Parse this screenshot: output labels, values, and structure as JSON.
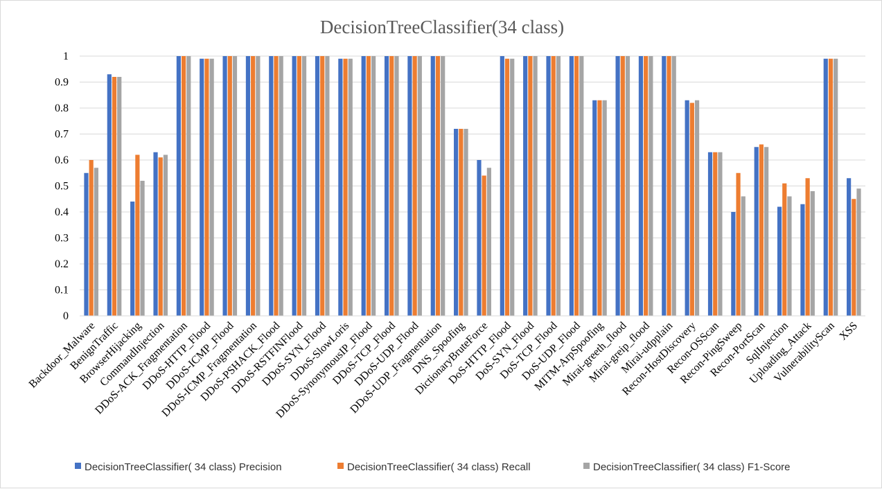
{
  "chart_data": {
    "type": "bar",
    "title": "DecisionTreeClassifier(34 class)",
    "xlabel": "",
    "ylabel": "",
    "ylim": [
      0,
      1
    ],
    "yticks": [
      "0",
      "0.1",
      "0.2",
      "0.3",
      "0.4",
      "0.5",
      "0.6",
      "0.7",
      "0.8",
      "0.9",
      "1"
    ],
    "grid": true,
    "legend_position": "bottom",
    "categories": [
      "Backdoor_Malware",
      "BenignTraffic",
      "BrowserHijacking",
      "CommandInjection",
      "DDoS-ACK_Fragmentation",
      "DDoS-HTTP_Flood",
      "DDoS-ICMP_Flood",
      "DDoS-ICMP_Fragmentation",
      "DDoS-PSHACK_Flood",
      "DDoS-RSTFINFlood",
      "DDoS-SYN_Flood",
      "DDoS-SlowLoris",
      "DDoS-SynonymousIP_Flood",
      "DDoS-TCP_Flood",
      "DDoS-UDP_Flood",
      "DDoS-UDP_Fragmentation",
      "DNS_Spoofing",
      "DictionaryBruteForce",
      "DoS-HTTP_Flood",
      "DoS-SYN_Flood",
      "DoS-TCP_Flood",
      "DoS-UDP_Flood",
      "MITM-ArpSpoofing",
      "Mirai-greeth_flood",
      "Mirai-greip_flood",
      "Mirai-udpplain",
      "Recon-HostDiscovery",
      "Recon-OSScan",
      "Recon-PingSweep",
      "Recon-PortScan",
      "SqlInjection",
      "Uploading_Attack",
      "VulnerabilityScan",
      "XSS"
    ],
    "series": [
      {
        "name": "DecisionTreeClassifier( 34 class) Precision",
        "color": "#4472c4",
        "values": [
          0.55,
          0.93,
          0.44,
          0.63,
          1,
          0.99,
          1,
          1,
          1,
          1,
          1,
          0.99,
          1,
          1,
          1,
          1,
          0.72,
          0.6,
          1,
          1,
          1,
          1,
          0.83,
          1,
          1,
          1,
          0.83,
          0.63,
          0.4,
          0.65,
          0.42,
          0.43,
          0.99,
          0.53
        ]
      },
      {
        "name": "DecisionTreeClassifier( 34 class) Recall",
        "color": "#ed7d31",
        "values": [
          0.6,
          0.92,
          0.62,
          0.61,
          1,
          0.99,
          1,
          1,
          1,
          1,
          1,
          0.99,
          1,
          1,
          1,
          1,
          0.72,
          0.54,
          0.99,
          1,
          1,
          1,
          0.83,
          1,
          1,
          1,
          0.82,
          0.63,
          0.55,
          0.66,
          0.51,
          0.53,
          0.99,
          0.45
        ]
      },
      {
        "name": "DecisionTreeClassifier( 34 class) F1-Score",
        "color": "#a5a5a5",
        "values": [
          0.57,
          0.92,
          0.52,
          0.62,
          1,
          0.99,
          1,
          1,
          1,
          1,
          1,
          0.99,
          1,
          1,
          1,
          1,
          0.72,
          0.57,
          0.99,
          1,
          1,
          1,
          0.83,
          1,
          1,
          1,
          0.83,
          0.63,
          0.46,
          0.65,
          0.46,
          0.48,
          0.99,
          0.49
        ]
      }
    ]
  }
}
